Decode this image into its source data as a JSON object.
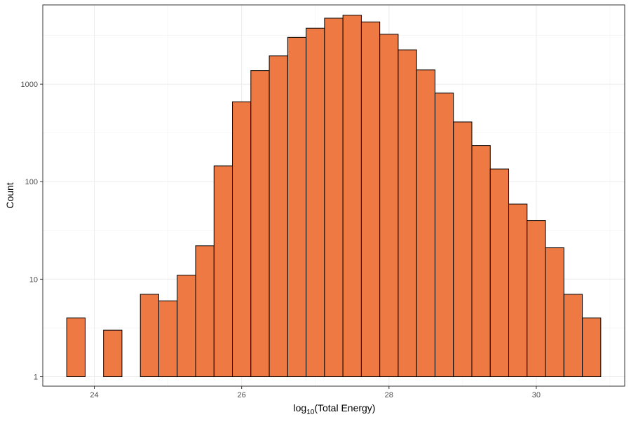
{
  "chart_data": {
    "type": "bar",
    "subtype": "histogram",
    "title": "",
    "xlabel": "log10(Total Energy)",
    "xlabel_parts": {
      "base": "log",
      "sub": "10",
      "rest": "(Total Energy)"
    },
    "ylabel": "Count",
    "y_scale": "log10",
    "xlim": [
      23.3,
      31.2
    ],
    "ylim": [
      0.8,
      6500
    ],
    "x_ticks": [
      24,
      26,
      28,
      30
    ],
    "x_tick_labels": [
      "24",
      "26",
      "28",
      "30"
    ],
    "y_ticks": [
      1,
      10,
      100,
      1000
    ],
    "y_tick_labels": [
      "1",
      "10",
      "100",
      "1000"
    ],
    "bin_width": 0.25,
    "grid": true,
    "legend": "none",
    "bar_color": "#ee7942",
    "bar_outline_color": "#000000",
    "bins": [
      {
        "x_start": 23.625,
        "x_end": 23.875,
        "count": 4
      },
      {
        "x_start": 23.875,
        "x_end": 24.125,
        "count": 1
      },
      {
        "x_start": 24.125,
        "x_end": 24.375,
        "count": 3
      },
      {
        "x_start": 24.375,
        "x_end": 24.625,
        "count": 1
      },
      {
        "x_start": 24.625,
        "x_end": 24.875,
        "count": 7
      },
      {
        "x_start": 24.875,
        "x_end": 25.125,
        "count": 6
      },
      {
        "x_start": 25.125,
        "x_end": 25.375,
        "count": 11
      },
      {
        "x_start": 25.375,
        "x_end": 25.625,
        "count": 22
      },
      {
        "x_start": 25.625,
        "x_end": 25.875,
        "count": 145
      },
      {
        "x_start": 25.875,
        "x_end": 26.125,
        "count": 660
      },
      {
        "x_start": 26.125,
        "x_end": 26.375,
        "count": 1380
      },
      {
        "x_start": 26.375,
        "x_end": 26.625,
        "count": 1950
      },
      {
        "x_start": 26.625,
        "x_end": 26.875,
        "count": 3020
      },
      {
        "x_start": 26.875,
        "x_end": 27.125,
        "count": 3750
      },
      {
        "x_start": 27.125,
        "x_end": 27.375,
        "count": 4750
      },
      {
        "x_start": 27.375,
        "x_end": 27.625,
        "count": 5100
      },
      {
        "x_start": 27.625,
        "x_end": 27.875,
        "count": 4350
      },
      {
        "x_start": 27.875,
        "x_end": 28.125,
        "count": 3250
      },
      {
        "x_start": 28.125,
        "x_end": 28.375,
        "count": 2250
      },
      {
        "x_start": 28.375,
        "x_end": 28.625,
        "count": 1400
      },
      {
        "x_start": 28.625,
        "x_end": 28.875,
        "count": 810
      },
      {
        "x_start": 28.875,
        "x_end": 29.125,
        "count": 410
      },
      {
        "x_start": 29.125,
        "x_end": 29.375,
        "count": 235
      },
      {
        "x_start": 29.375,
        "x_end": 29.625,
        "count": 135
      },
      {
        "x_start": 29.625,
        "x_end": 29.875,
        "count": 59
      },
      {
        "x_start": 29.875,
        "x_end": 30.125,
        "count": 40
      },
      {
        "x_start": 30.125,
        "x_end": 30.375,
        "count": 21
      },
      {
        "x_start": 30.375,
        "x_end": 30.625,
        "count": 7
      },
      {
        "x_start": 30.625,
        "x_end": 30.875,
        "count": 4
      },
      {
        "x_start": 30.875,
        "x_end": 31.125,
        "count": 1
      }
    ]
  }
}
